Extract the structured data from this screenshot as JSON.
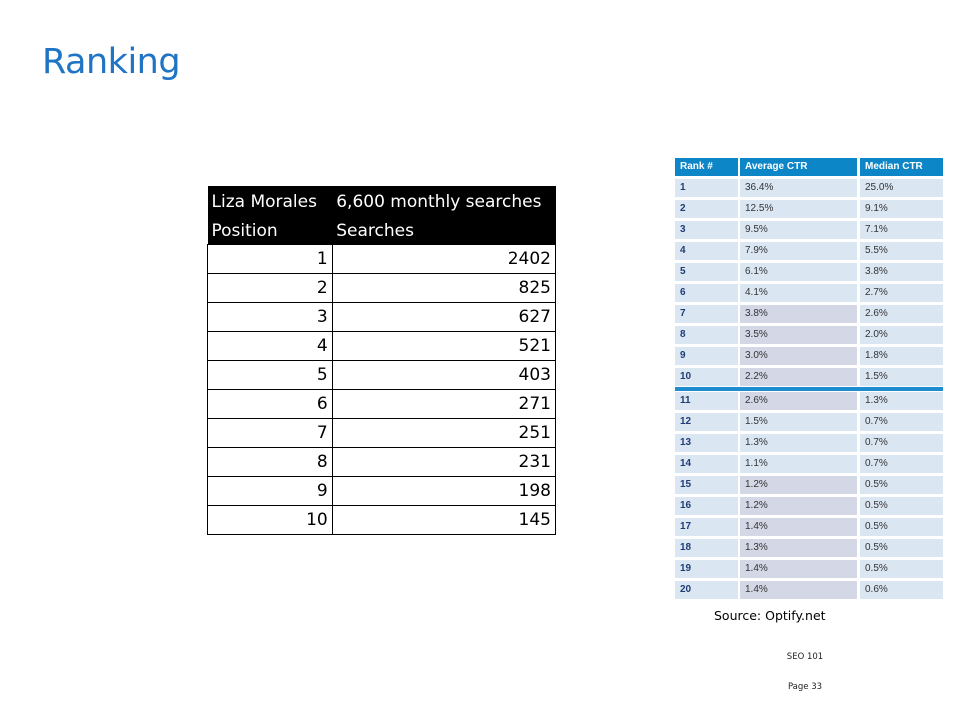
{
  "slide": {
    "title": "Ranking",
    "source": "Source: Optify.net",
    "footer_course": "SEO 101",
    "footer_page": "Page 33"
  },
  "search_table": {
    "name": "Liza Morales",
    "monthly": "6,600 monthly searches",
    "col_position": "Position",
    "col_searches": "Searches",
    "rows": [
      {
        "position": "1",
        "searches": "2402"
      },
      {
        "position": "2",
        "searches": "825"
      },
      {
        "position": "3",
        "searches": "627"
      },
      {
        "position": "4",
        "searches": "521"
      },
      {
        "position": "5",
        "searches": "403"
      },
      {
        "position": "6",
        "searches": "271"
      },
      {
        "position": "7",
        "searches": "251"
      },
      {
        "position": "8",
        "searches": "231"
      },
      {
        "position": "9",
        "searches": "198"
      },
      {
        "position": "10",
        "searches": "145"
      }
    ]
  },
  "ctr_table": {
    "headers": [
      "Rank #",
      "Average CTR",
      "Median CTR"
    ],
    "rows": [
      [
        "1",
        "36.4%",
        "25.0%"
      ],
      [
        "2",
        "12.5%",
        "9.1%"
      ],
      [
        "3",
        "9.5%",
        "7.1%"
      ],
      [
        "4",
        "7.9%",
        "5.5%"
      ],
      [
        "5",
        "6.1%",
        "3.8%"
      ],
      [
        "6",
        "4.1%",
        "2.7%"
      ],
      [
        "7",
        "3.8%",
        "2.6%"
      ],
      [
        "8",
        "3.5%",
        "2.0%"
      ],
      [
        "9",
        "3.0%",
        "1.8%"
      ],
      [
        "10",
        "2.2%",
        "1.5%"
      ],
      [
        "11",
        "2.6%",
        "1.3%"
      ],
      [
        "12",
        "1.5%",
        "0.7%"
      ],
      [
        "13",
        "1.3%",
        "0.7%"
      ],
      [
        "14",
        "1.1%",
        "0.7%"
      ],
      [
        "15",
        "1.2%",
        "0.5%"
      ],
      [
        "16",
        "1.2%",
        "0.5%"
      ],
      [
        "17",
        "1.4%",
        "0.5%"
      ],
      [
        "18",
        "1.3%",
        "0.5%"
      ],
      [
        "19",
        "1.4%",
        "0.5%"
      ],
      [
        "20",
        "1.4%",
        "0.6%"
      ]
    ]
  }
}
